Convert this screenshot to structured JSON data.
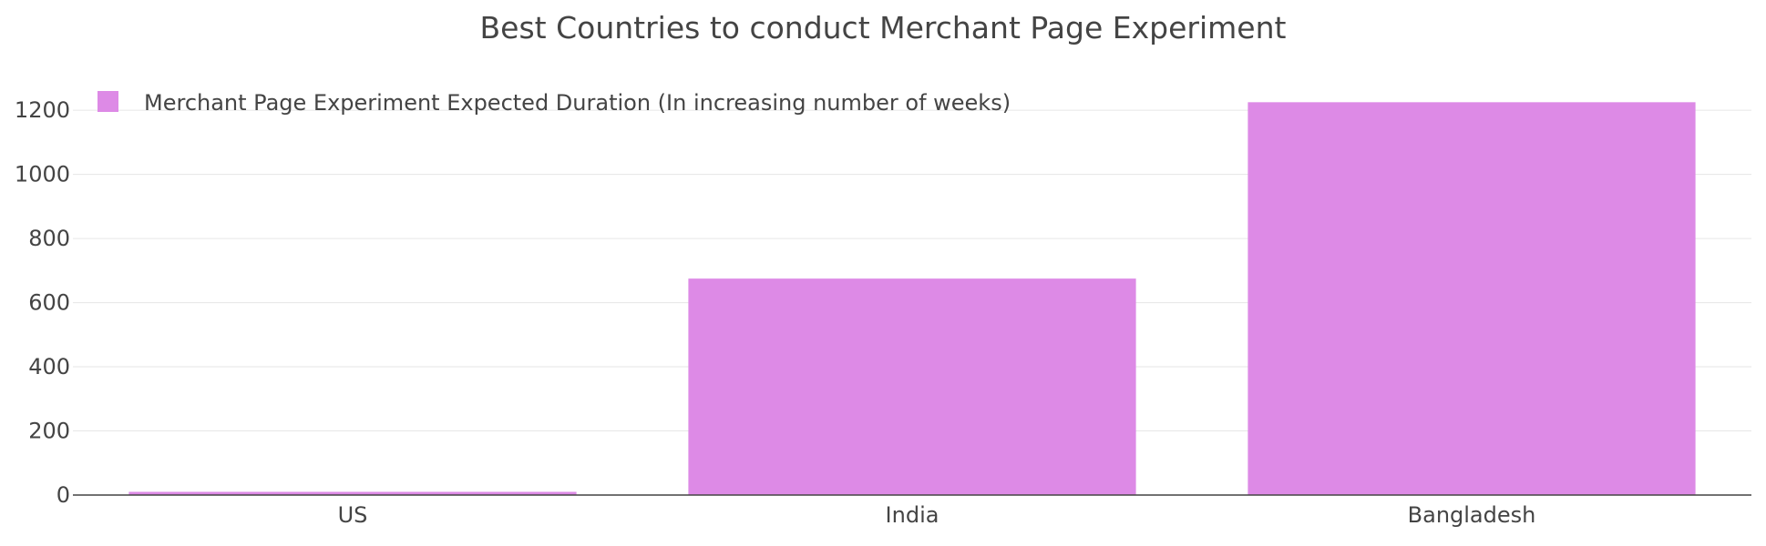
{
  "chart_data": {
    "type": "bar",
    "title": "Best Countries to conduct Merchant Page Experiment",
    "xlabel": "",
    "ylabel": "",
    "categories": [
      "US",
      "India",
      "Bangladesh"
    ],
    "series": [
      {
        "name": "Merchant Page Experiment Expected Duration (In increasing number of weeks)",
        "values": [
          10,
          675,
          1225
        ],
        "color": "#dd8ae6"
      }
    ],
    "ylim": [
      0,
      1260
    ],
    "yticks": [
      0,
      200,
      400,
      600,
      800,
      1000,
      1200
    ],
    "grid": true,
    "legend": "top-left"
  }
}
